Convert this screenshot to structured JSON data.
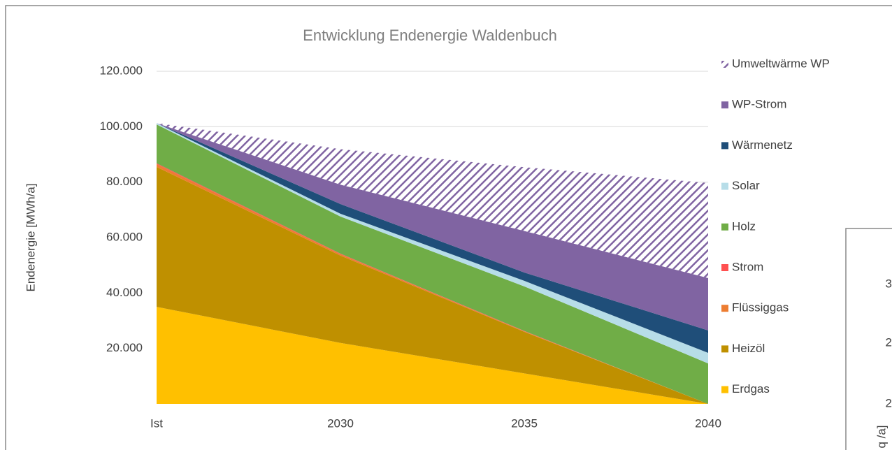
{
  "chart_data": {
    "type": "stacked_area",
    "title": "Entwicklung Endenergie Waldenbuch",
    "y_label": "Endenergie [MWh/a]",
    "categories": [
      "Ist",
      "2030",
      "2035",
      "2040"
    ],
    "series": [
      {
        "name": "Erdgas",
        "color": "#ffc000",
        "values": [
          35000,
          22000,
          11000,
          0
        ]
      },
      {
        "name": "Heizöl",
        "color": "#bf9000",
        "values": [
          50500,
          31500,
          15000,
          0
        ]
      },
      {
        "name": "Flüssiggas",
        "color": "#ed7d31",
        "values": [
          1000,
          500,
          200,
          0
        ]
      },
      {
        "name": "Strom",
        "color": "#ff5050",
        "values": [
          300,
          200,
          100,
          0
        ]
      },
      {
        "name": "Holz",
        "color": "#70ad47",
        "values": [
          14000,
          13400,
          16100,
          14600
        ]
      },
      {
        "name": "Solar",
        "color": "#b7dde8",
        "values": [
          500,
          1000,
          2000,
          3800
        ]
      },
      {
        "name": "Wärmenetz",
        "color": "#1f4e79",
        "values": [
          0,
          3500,
          3000,
          8100
        ]
      },
      {
        "name": "WP-Strom",
        "color": "#8064a2",
        "values": [
          0,
          7000,
          15000,
          18900
        ]
      },
      {
        "name": "Umweltwärme WP",
        "color": "#8064a2",
        "hatch": true,
        "values": [
          0,
          12800,
          23000,
          34300
        ]
      }
    ],
    "ylim": [
      0,
      120000
    ],
    "yticks": [
      {
        "value": 20000,
        "label": "20.000"
      },
      {
        "value": 40000,
        "label": "40.000"
      },
      {
        "value": 60000,
        "label": "60.000"
      },
      {
        "value": 80000,
        "label": "80.000"
      },
      {
        "value": 100000,
        "label": "100.000"
      },
      {
        "value": 120000,
        "label": "120.000"
      }
    ],
    "grid": true,
    "legend": "right"
  },
  "overlay": {
    "tick_labels": [
      "3",
      "2",
      "2"
    ],
    "y_label": "q /a]"
  }
}
